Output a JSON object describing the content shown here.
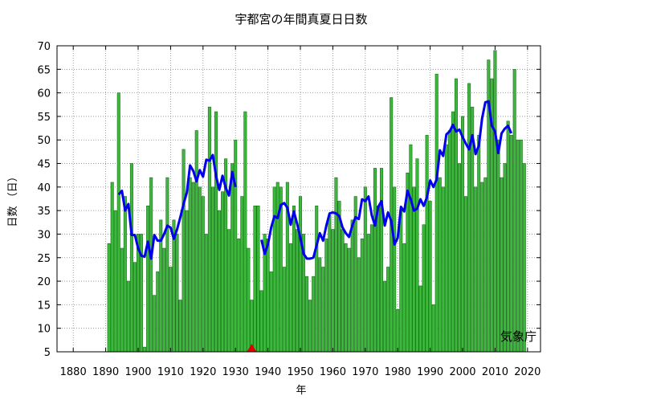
{
  "chart_data": {
    "type": "bar",
    "title": "宇都宮の年間真夏日日数",
    "xlabel": "年",
    "ylabel": "日数 （日）",
    "source_label": "気象庁",
    "xlim": [
      1875,
      2024
    ],
    "ylim": [
      5,
      70
    ],
    "x_ticks": [
      1880,
      1890,
      1900,
      1910,
      1920,
      1930,
      1940,
      1950,
      1960,
      1970,
      1980,
      1990,
      2000,
      2010,
      2020
    ],
    "y_ticks": [
      5,
      10,
      15,
      20,
      25,
      30,
      35,
      40,
      45,
      50,
      55,
      60,
      65,
      70
    ],
    "grid": true,
    "bar_color": "#3cb83c",
    "line_color": "#0000ee",
    "marker_color": "#dd0000",
    "marker_year": 1935,
    "start_year": 1891,
    "values": [
      28,
      41,
      35,
      60,
      27,
      38,
      20,
      45,
      24,
      30,
      30,
      6,
      36,
      42,
      17,
      22,
      33,
      27,
      42,
      23,
      33,
      30,
      16,
      48,
      35,
      42,
      41,
      52,
      40,
      38,
      30,
      57,
      40,
      56,
      35,
      39,
      46,
      31,
      45,
      50,
      29,
      38,
      56,
      27,
      16,
      36,
      36,
      18,
      30,
      29,
      22,
      40,
      41,
      40,
      23,
      41,
      28,
      36,
      31,
      38,
      30,
      21,
      16,
      21,
      36,
      25,
      23,
      29,
      34,
      31,
      42,
      37,
      31,
      28,
      27,
      33,
      38,
      25,
      29,
      40,
      30,
      32,
      44,
      36,
      44,
      20,
      23,
      59,
      40,
      14,
      35,
      28,
      43,
      49,
      40,
      46,
      19,
      32,
      51,
      37,
      15,
      64,
      42,
      40,
      49,
      52,
      56,
      63,
      45,
      55,
      38,
      62,
      57,
      40,
      51,
      41,
      42,
      67,
      63,
      69,
      50,
      42,
      45,
      54,
      51,
      65,
      50,
      50,
      45
    ],
    "moving_average": {
      "start_year": 1894,
      "segments": [
        [
          38.4,
          39.2,
          35.0,
          36.4,
          29.8,
          29.8,
          27.0,
          25.4,
          25.2,
          28.4,
          24.8,
          29.8,
          28.6,
          28.6,
          30.0,
          31.8,
          31.4,
          29.0,
          31.0,
          33.6,
          36.4,
          38.8,
          44.6,
          43.4,
          41.2,
          43.6,
          42.2,
          45.8,
          45.6,
          46.8,
          42.4,
          39.4,
          42.4,
          39.8,
          38.2,
          43.2,
          40.0
        ],
        [
          28.8,
          25.8,
          27.8,
          31.4,
          33.8,
          33.4,
          36.2,
          36.6,
          35.6,
          32.0,
          34.8,
          32.2,
          29.2,
          25.8,
          24.8,
          24.8,
          25.0,
          27.6,
          30.2,
          28.6,
          31.8,
          34.4,
          34.6,
          34.4,
          33.8,
          31.4,
          30.2,
          29.4,
          31.8,
          33.6,
          33.2,
          37.4,
          37.0,
          38.0,
          34.0,
          31.8,
          35.8,
          37.0,
          31.8,
          34.6,
          32.8,
          27.8,
          29.2,
          35.8,
          34.8,
          39.2,
          37.4,
          35.0,
          35.4,
          37.4,
          36.0,
          37.8,
          41.4,
          40.0,
          41.6,
          47.8,
          46.6,
          51.2,
          51.8,
          53.2,
          51.8,
          52.2,
          50.6,
          49.2,
          48.0,
          51.0,
          47.0,
          48.8,
          54.6,
          58.0,
          58.2,
          53.0,
          51.8,
          47.2,
          51.4,
          52.4,
          53.0,
          51.4
        ]
      ],
      "segment_starts": [
        1894,
        1938
      ]
    }
  }
}
